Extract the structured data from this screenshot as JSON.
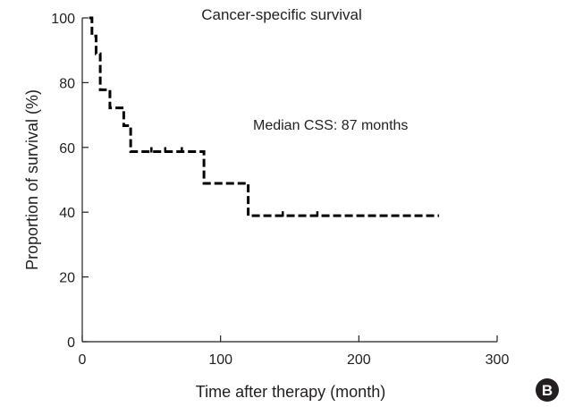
{
  "chart_data": {
    "type": "line",
    "title": "Cancer-specific survival",
    "xlabel": "Time after therapy (month)",
    "ylabel": "Proportion of survival (%)",
    "xlim": [
      0,
      300
    ],
    "ylim": [
      0,
      100
    ],
    "x_ticks": [
      0,
      100,
      200,
      300
    ],
    "y_ticks": [
      0,
      20,
      40,
      60,
      80,
      100
    ],
    "grid": false,
    "line_style": "dashed",
    "step": true,
    "annotation": "Median CSS: 87 months",
    "panel_label": "B",
    "series": [
      {
        "x": [
          5,
          7,
          10,
          13,
          20,
          30,
          35,
          88,
          120,
          258
        ],
        "y": [
          100,
          94.4,
          88.9,
          77.8,
          72.2,
          66.7,
          58.7,
          48.9,
          38.9,
          38.9
        ]
      }
    ],
    "censored": {
      "x": [
        50,
        60,
        72,
        145,
        170
      ],
      "y": [
        58.7,
        58.7,
        58.7,
        38.9,
        38.9
      ]
    }
  }
}
